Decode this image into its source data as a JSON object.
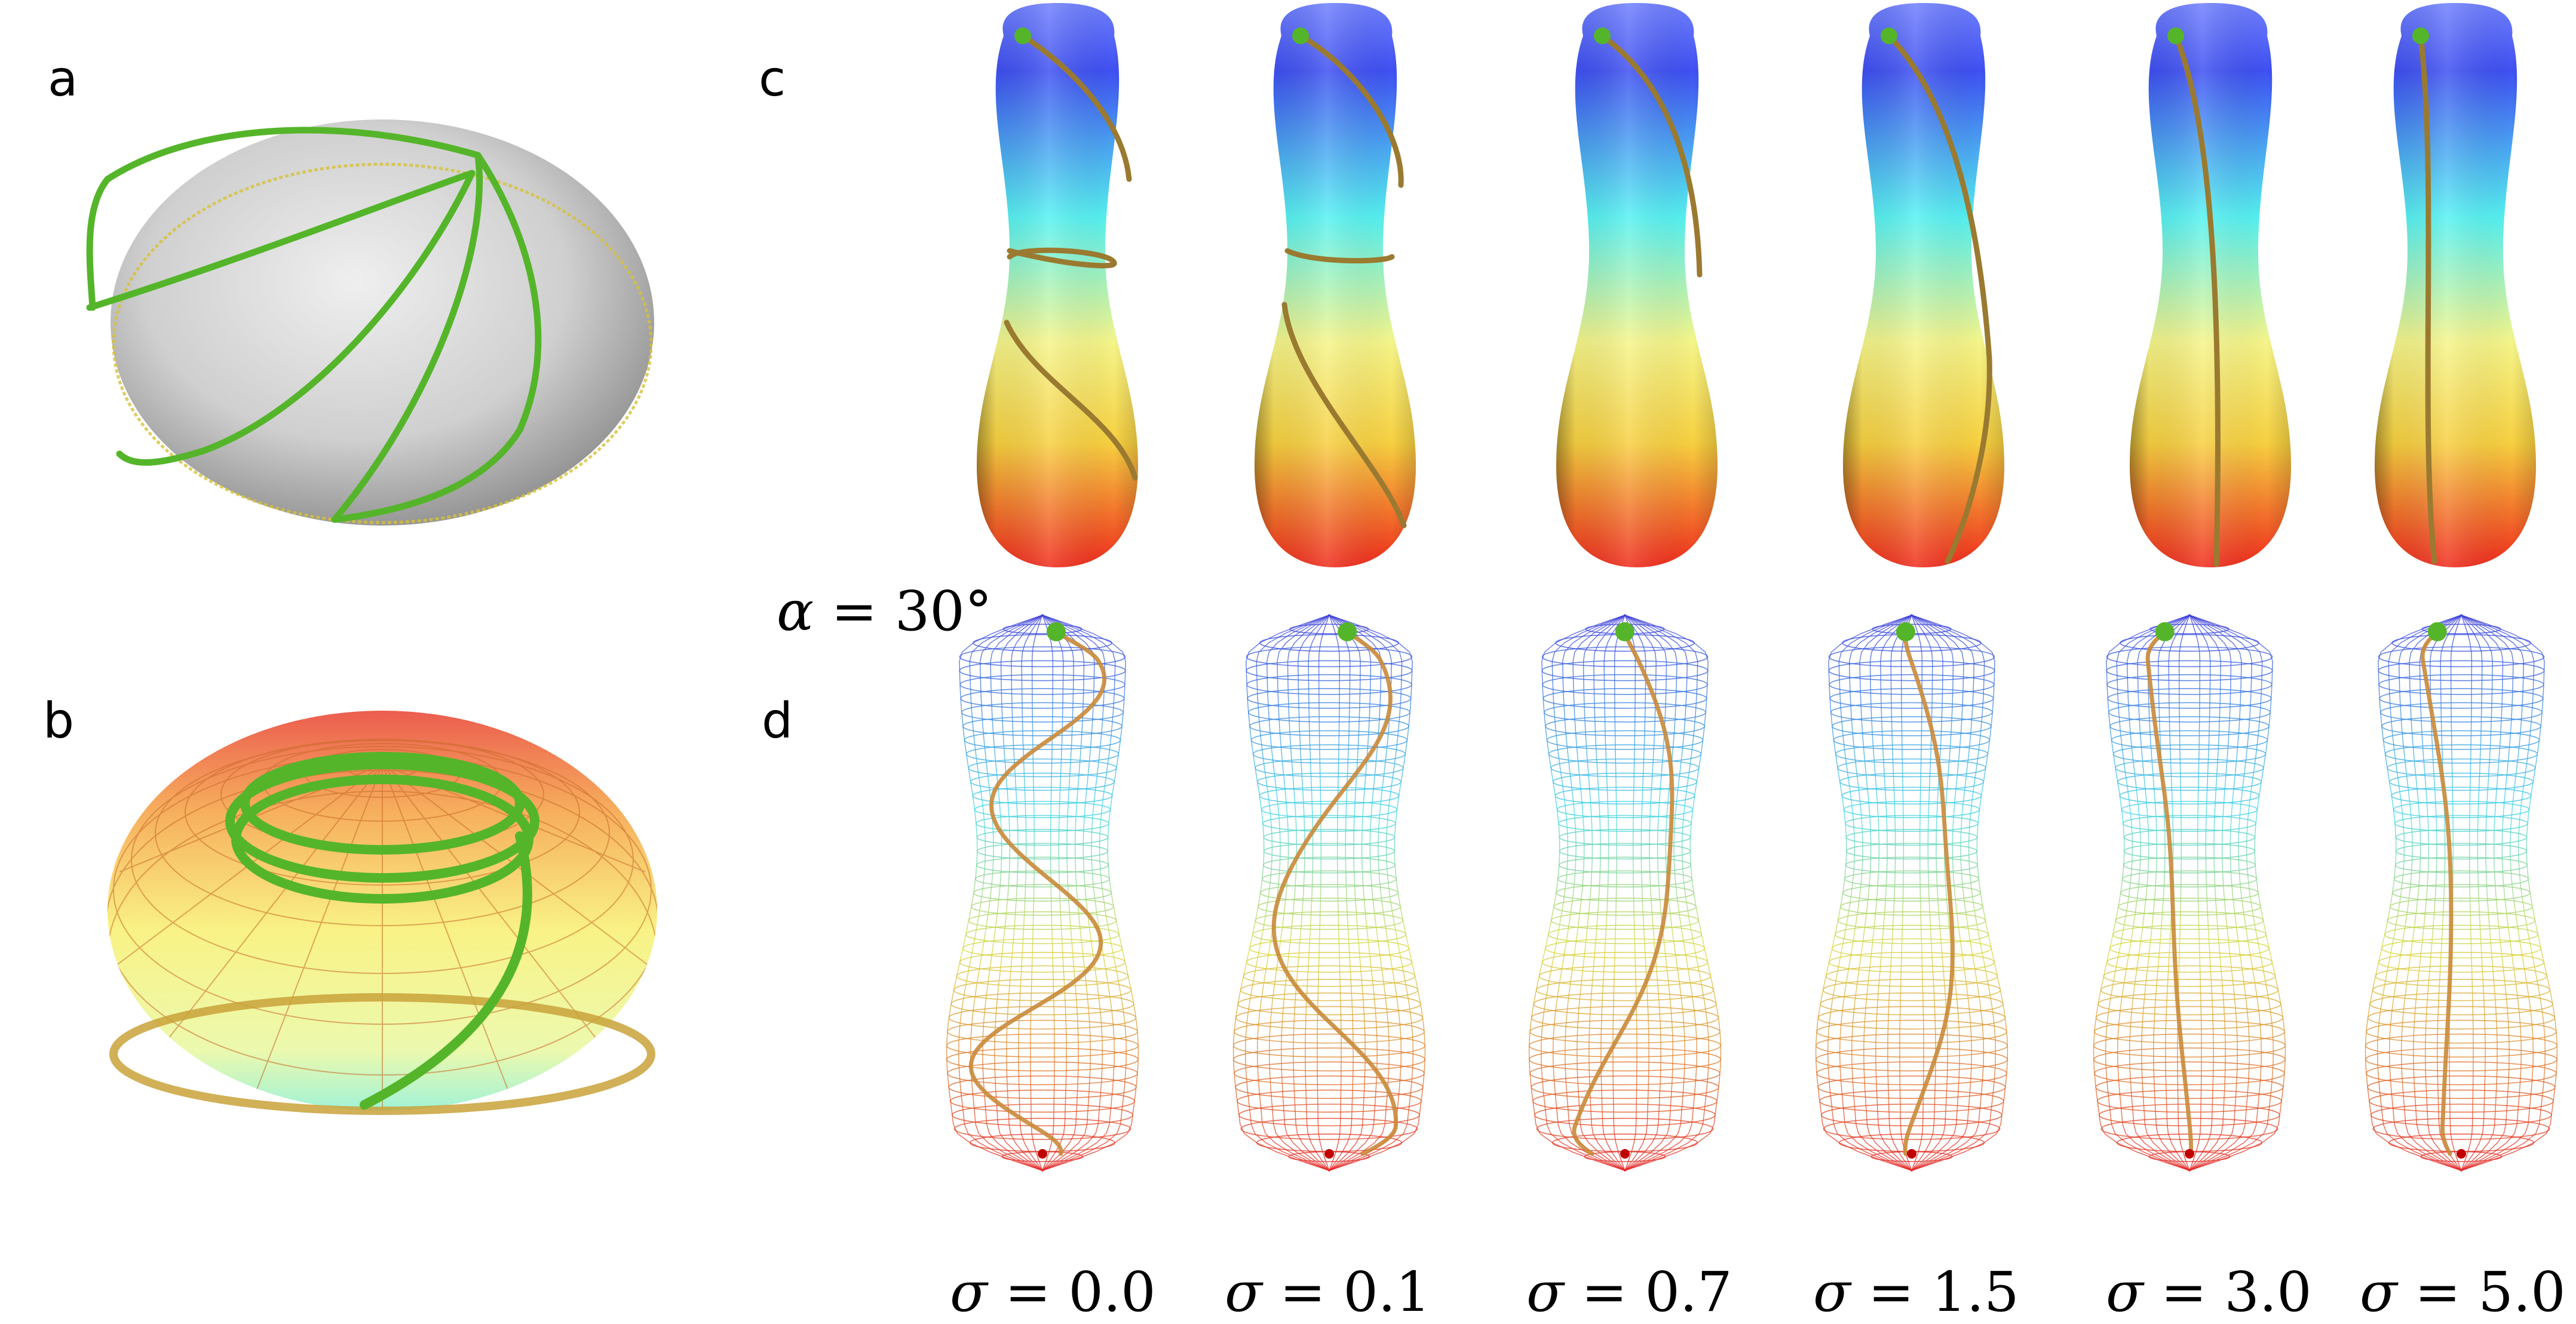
{
  "panels": {
    "a": "a",
    "b": "b",
    "c": "c",
    "d": "d"
  },
  "alpha_label": {
    "symbol": "α",
    "eq": " = ",
    "value": "30°"
  },
  "sigma_labels": [
    {
      "symbol": "σ",
      "eq": " = ",
      "value": "0.0"
    },
    {
      "symbol": "σ",
      "eq": " = ",
      "value": "0.1"
    },
    {
      "symbol": "σ",
      "eq": " = ",
      "value": "0.7"
    },
    {
      "symbol": "σ",
      "eq": " = ",
      "value": "1.5"
    },
    {
      "symbol": "σ",
      "eq": " = ",
      "value": "3.0"
    },
    {
      "symbol": "σ",
      "eq": " = ",
      "value": "5.0"
    }
  ],
  "colors": {
    "path_green": "#55b52a",
    "path_orange": "#c98a3a",
    "path_yellow": "#d6c23a",
    "surface_gray": "#c8c8c8",
    "top_blue": "#4a5ff0",
    "mid_cyan": "#55f7f0",
    "mid_yellow": "#f7f56a",
    "bottom_red": "#f03020"
  }
}
